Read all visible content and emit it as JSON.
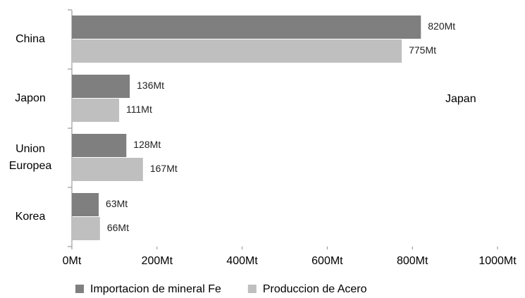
{
  "chart_data": {
    "type": "bar",
    "orientation": "horizontal",
    "categories": [
      "China",
      "Japon",
      "Union Europea",
      "Korea"
    ],
    "series": [
      {
        "name": "Importacion de mineral Fe",
        "color": "#7f7f7f",
        "values": [
          820,
          136,
          128,
          63
        ],
        "value_labels": [
          "820Mt",
          "136Mt",
          "128Mt",
          "63Mt"
        ]
      },
      {
        "name": "Produccion de Acero",
        "color": "#bfbfbf",
        "values": [
          775,
          111,
          167,
          66
        ],
        "value_labels": [
          "775Mt",
          "111Mt",
          "167Mt",
          "66Mt"
        ]
      }
    ],
    "xlim": [
      0,
      1000
    ],
    "xticks": [
      {
        "value": 0,
        "label": "0Mt"
      },
      {
        "value": 200,
        "label": "200Mt"
      },
      {
        "value": 400,
        "label": "400Mt"
      },
      {
        "value": 600,
        "label": "600Mt"
      },
      {
        "value": 800,
        "label": "800Mt"
      },
      {
        "value": 1000,
        "label": "1000Mt"
      }
    ],
    "annotation": "Japan",
    "legend": "bottom"
  }
}
